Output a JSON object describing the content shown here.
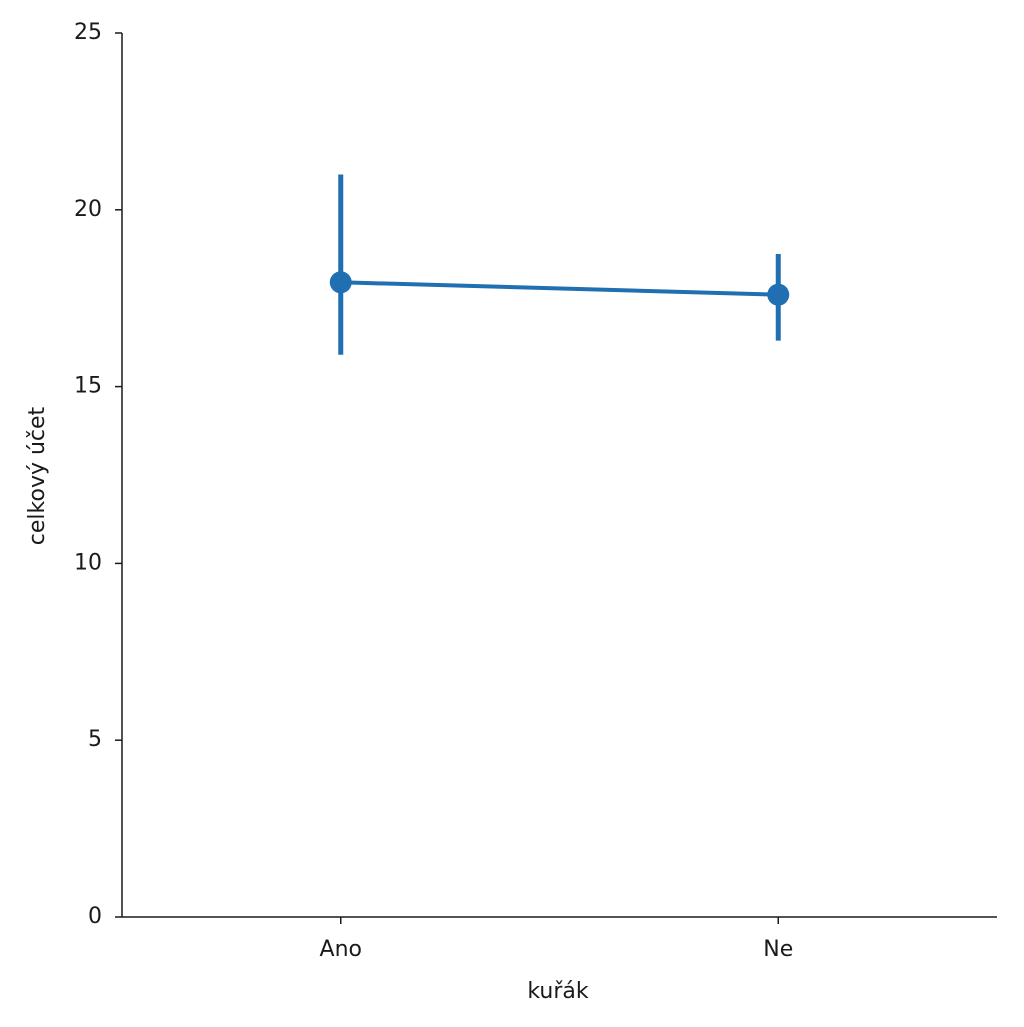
{
  "chart_data": {
    "type": "point",
    "x_label": "kuřák",
    "y_label": "celkový účet",
    "categories": [
      "Ano",
      "Ne"
    ],
    "values": [
      17.95,
      17.6
    ],
    "ci_lower": [
      15.9,
      16.3
    ],
    "ci_upper": [
      21.0,
      18.75
    ],
    "color": "#1f6fb2",
    "ylim": [
      0,
      25
    ],
    "yticks": [
      0,
      5,
      10,
      15,
      20,
      25
    ],
    "grid": false
  }
}
